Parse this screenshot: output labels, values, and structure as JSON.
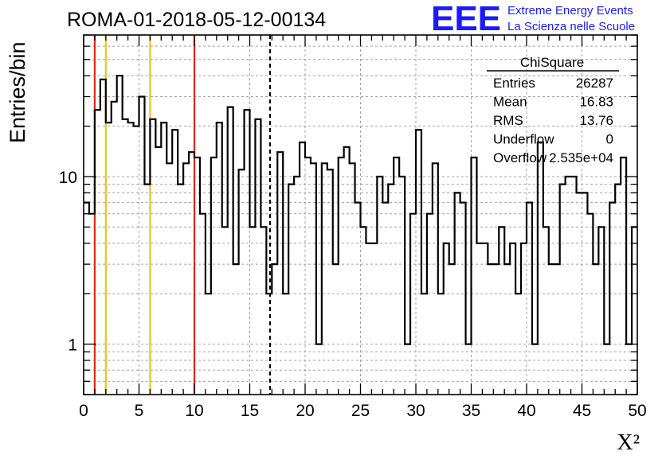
{
  "header": {
    "run_title": "ROMA-01-2018-05-12-00134",
    "logo_text": "EEE",
    "logo_line1": "Extreme Energy Events",
    "logo_line2": "La Scienza nelle Scuole"
  },
  "colors": {
    "logo": "#1a1aff",
    "red_lines": "#e0261b",
    "yellow_lines": "#f2c01d",
    "histogram": "#000000",
    "grid": "#a0a0a0"
  },
  "stats_box": {
    "title": "ChiSquare",
    "rows": [
      {
        "label": "Entries",
        "value": "26287"
      },
      {
        "label": "Mean",
        "value": "16.83"
      },
      {
        "label": "RMS",
        "value": "13.76"
      },
      {
        "label": "Underflow",
        "value": "0"
      },
      {
        "label": "Overflow",
        "value": "2.535e+04"
      }
    ]
  },
  "chart_data": {
    "type": "histogram",
    "title": "ROMA-01-2018-05-12-00134",
    "xlabel": "X²",
    "ylabel": "Entries/bin",
    "xlim": [
      0,
      50
    ],
    "ylim": [
      0.5,
      70
    ],
    "y_scale": "log",
    "x_ticks": [
      "0",
      "5",
      "10",
      "15",
      "20",
      "25",
      "30",
      "35",
      "40",
      "45",
      "50"
    ],
    "y_ticks": [
      {
        "value": 1,
        "label": "1"
      },
      {
        "value": 10,
        "label": "10"
      }
    ],
    "grid": true,
    "bin_width": 0.5,
    "bin_start": 0,
    "values": [
      7,
      6,
      25,
      38,
      21,
      28,
      40,
      22,
      21,
      20,
      30,
      9,
      22,
      15,
      21,
      12,
      19,
      9,
      12,
      14,
      13,
      6,
      2,
      13,
      21,
      5,
      26,
      3,
      11,
      25,
      5,
      22,
      5,
      2,
      3,
      14,
      2,
      9,
      10,
      16,
      13,
      12,
      1,
      12,
      11,
      3,
      13,
      15,
      12,
      7,
      5,
      4,
      4,
      10,
      7,
      9,
      13,
      10,
      1,
      6,
      19,
      2,
      6,
      12,
      2,
      4,
      3,
      8,
      7,
      1,
      13,
      4,
      4,
      3,
      3,
      5,
      3,
      4,
      2,
      4,
      7,
      1,
      16,
      5,
      3,
      3,
      9,
      10,
      10,
      8,
      8,
      6,
      3,
      5,
      1,
      7,
      9,
      13,
      1,
      5
    ],
    "vertical_lines": [
      {
        "x": 1,
        "color": "red",
        "style": "solid"
      },
      {
        "x": 2,
        "color": "yellow",
        "style": "solid"
      },
      {
        "x": 6,
        "color": "yellow",
        "style": "solid"
      },
      {
        "x": 10,
        "color": "red",
        "style": "solid"
      },
      {
        "x": 16.83,
        "color": "black",
        "style": "dashed"
      }
    ]
  }
}
